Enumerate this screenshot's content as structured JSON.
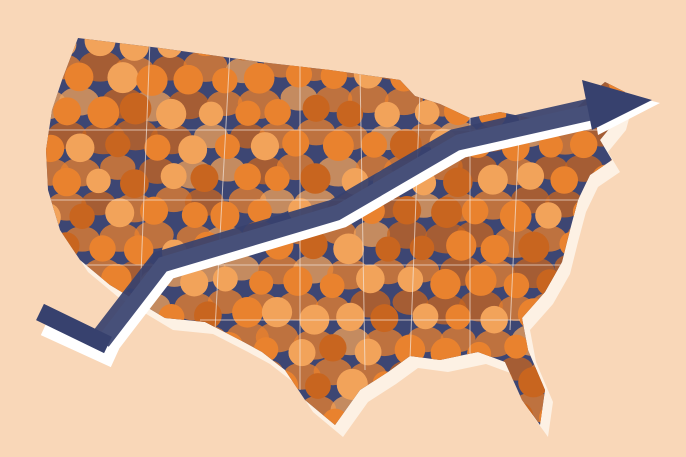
{
  "illustration": {
    "subject": "us-map-crowd-with-rising-trend-arrow",
    "colors": {
      "background": "#f9d7b8",
      "map_base": "#3d4673",
      "map_shadow": "#fdf1e4",
      "state_borders": "#f3e6dc",
      "face_orange": "#e9822e",
      "face_light": "#f2a35a",
      "face_dark": "#c8651f",
      "arrow": "#37416e",
      "arrow_outline": "#ffffff"
    }
  }
}
